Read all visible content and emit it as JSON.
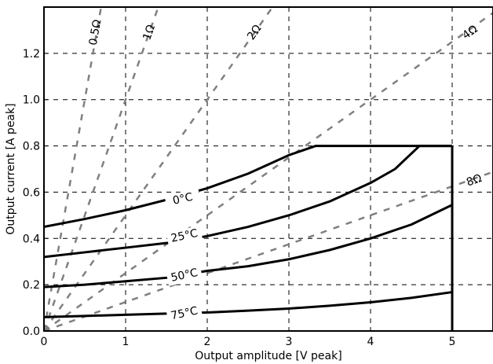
{
  "chart_data": {
    "type": "line",
    "title": "",
    "xlabel": "Output amplitude [V peak]",
    "ylabel": "Output current [A peak]",
    "xlim": [
      0,
      5.5
    ],
    "ylim": [
      0,
      1.4
    ],
    "xticks": [
      0,
      1,
      2,
      3,
      4,
      5
    ],
    "xtick_labels": [
      "0",
      "1",
      "2",
      "3",
      "4",
      "5"
    ],
    "yticks": [
      0.0,
      0.2,
      0.4,
      0.6,
      0.8,
      1.0,
      1.2
    ],
    "ytick_labels": [
      "0.0",
      "0.2",
      "0.4",
      "0.6",
      "0.8",
      "1.0",
      "1.2"
    ],
    "grid": true,
    "load_lines": [
      {
        "label": "0.5Ω",
        "resistance": 0.5,
        "label_at": [
          0.63,
          1.29
        ]
      },
      {
        "label": "1Ω",
        "resistance": 1,
        "label_at": [
          1.29,
          1.29
        ]
      },
      {
        "label": "2Ω",
        "resistance": 2,
        "label_at": [
          2.58,
          1.29
        ]
      },
      {
        "label": "4Ω",
        "resistance": 4,
        "label_at": [
          5.22,
          1.29
        ]
      },
      {
        "label": "8Ω",
        "resistance": 8,
        "label_at": [
          5.27,
          0.65
        ]
      }
    ],
    "series": [
      {
        "name": "0°C",
        "x": [
          0,
          0.5,
          1.0,
          1.5,
          2.0,
          2.5,
          3.0,
          3.33,
          4.0,
          5.0
        ],
        "y": [
          0.45,
          0.484,
          0.522,
          0.567,
          0.617,
          0.68,
          0.76,
          0.8,
          0.8,
          0.8
        ],
        "label_at": [
          1.7,
          0.57
        ]
      },
      {
        "name": "25°C",
        "x": [
          0,
          0.5,
          1.0,
          1.5,
          2.0,
          2.5,
          3.0,
          3.5,
          4.0,
          4.3,
          4.6,
          5.0
        ],
        "y": [
          0.32,
          0.34,
          0.36,
          0.38,
          0.41,
          0.45,
          0.5,
          0.56,
          0.64,
          0.7,
          0.8,
          0.8
        ],
        "label_at": [
          1.72,
          0.41
        ]
      },
      {
        "name": "50°C",
        "x": [
          0,
          0.5,
          1.0,
          1.5,
          2.0,
          2.5,
          3.0,
          3.5,
          4.0,
          4.5,
          5.0
        ],
        "y": [
          0.19,
          0.2,
          0.215,
          0.23,
          0.26,
          0.28,
          0.31,
          0.35,
          0.4,
          0.46,
          0.545
        ],
        "label_at": [
          1.72,
          0.24
        ]
      },
      {
        "name": "75°C",
        "x": [
          0,
          0.5,
          1.0,
          1.5,
          2.0,
          2.5,
          3.0,
          3.5,
          4.0,
          4.5,
          5.0
        ],
        "y": [
          0.06,
          0.065,
          0.07,
          0.075,
          0.08,
          0.088,
          0.097,
          0.109,
          0.124,
          0.143,
          0.168
        ],
        "label_at": [
          1.72,
          0.075
        ]
      }
    ],
    "limits": {
      "max_amplitude": 5.0,
      "max_current": 0.8
    }
  }
}
